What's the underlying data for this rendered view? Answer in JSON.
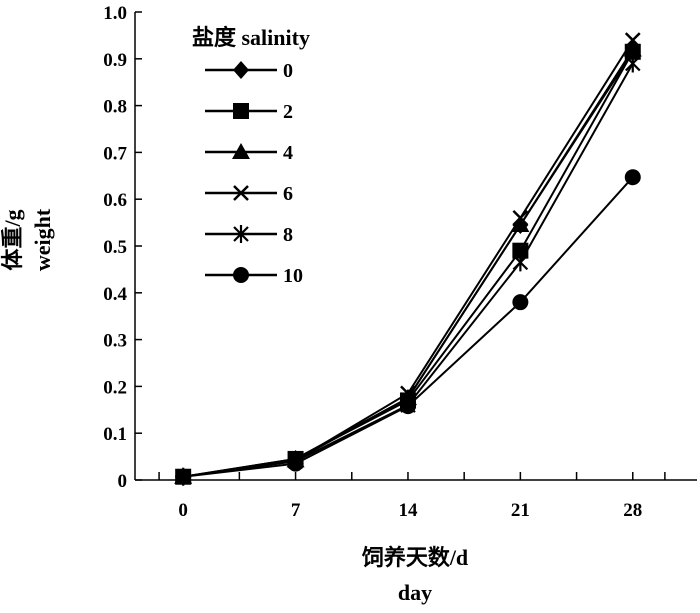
{
  "chart_data": {
    "type": "line",
    "xlabel_cn": "饲养天数/d",
    "xlabel_en": "day",
    "ylabel_cn": "体重/g",
    "ylabel_en": "weight",
    "legend_title": "盐度 salinity",
    "legend_placement": "top-left",
    "grid": false,
    "x": [
      0,
      7,
      14,
      21,
      28
    ],
    "x_tick_labels": [
      "0",
      "7",
      "14",
      "21",
      "28"
    ],
    "xlim": [
      -3,
      32
    ],
    "ylim": [
      0,
      1.0
    ],
    "y_ticks": [
      "0",
      "0.1",
      "0.2",
      "0.3",
      "0.4",
      "0.5",
      "0.6",
      "0.7",
      "0.8",
      "0.9",
      "1.0"
    ],
    "series": [
      {
        "name": "0",
        "marker": "diamond",
        "values": [
          0.007,
          0.045,
          0.175,
          0.545,
          0.915
        ]
      },
      {
        "name": "2",
        "marker": "square",
        "values": [
          0.007,
          0.045,
          0.17,
          0.49,
          0.915
        ]
      },
      {
        "name": "4",
        "marker": "triangle",
        "values": [
          0.007,
          0.042,
          0.175,
          0.545,
          0.92
        ]
      },
      {
        "name": "6",
        "marker": "x",
        "values": [
          0.007,
          0.042,
          0.185,
          0.56,
          0.94
        ]
      },
      {
        "name": "8",
        "marker": "asterisk",
        "values": [
          0.007,
          0.04,
          0.16,
          0.465,
          0.89
        ]
      },
      {
        "name": "10",
        "marker": "circle",
        "values": [
          0.007,
          0.035,
          0.158,
          0.38,
          0.647
        ]
      }
    ]
  }
}
